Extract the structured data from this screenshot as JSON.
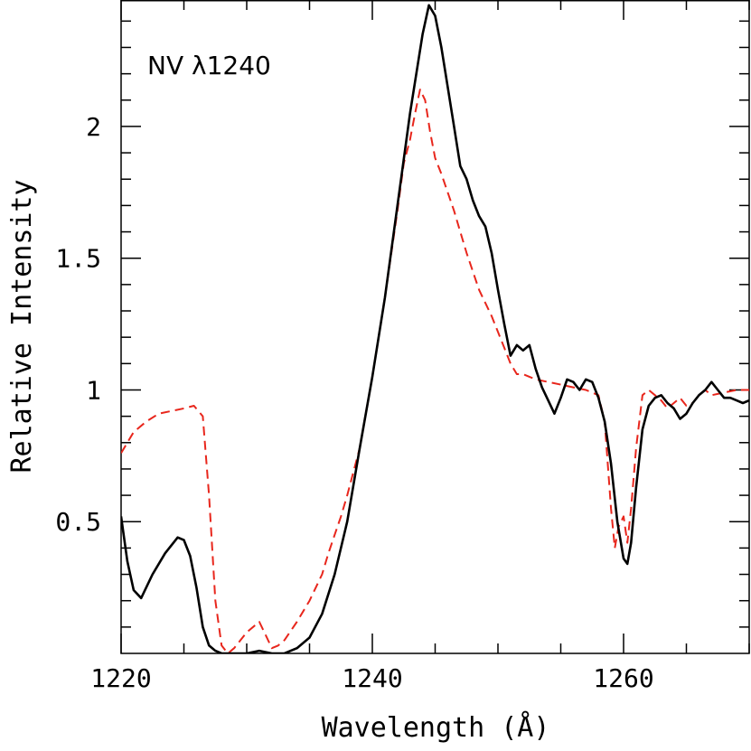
{
  "chart_data": {
    "type": "line",
    "title": "",
    "annotation": "NV λ1240",
    "xlabel": "Wavelength (Å)",
    "ylabel": "Relative Intensity",
    "xlim": [
      1220,
      1270
    ],
    "ylim": [
      0,
      2.48
    ],
    "x_ticks": [
      1220,
      1240,
      1260
    ],
    "y_ticks": [
      0.5,
      1,
      1.5,
      2
    ],
    "x_tick_labels": [
      "1220",
      "1240",
      "1260"
    ],
    "y_tick_labels": [
      "0.5",
      "1",
      "1.5",
      "2"
    ],
    "grid": false,
    "colors": {
      "observed": "#000000",
      "model": "#e8261c"
    },
    "series": [
      {
        "style": "solid",
        "x": [
          1220,
          1220.5,
          1221,
          1221.6,
          1222.5,
          1223.5,
          1224.5,
          1225,
          1225.5,
          1226,
          1226.5,
          1227,
          1227.5,
          1228,
          1229,
          1230,
          1231,
          1232,
          1233,
          1234,
          1235,
          1236,
          1237,
          1238,
          1239,
          1240,
          1241,
          1242,
          1243,
          1244,
          1244.5,
          1245,
          1245.5,
          1246,
          1246.5,
          1247,
          1247.5,
          1248,
          1248.5,
          1249,
          1249.5,
          1250,
          1250.5,
          1251,
          1251.5,
          1252,
          1252.5,
          1253,
          1253.5,
          1254,
          1254.5,
          1255,
          1255.5,
          1256,
          1256.5,
          1257,
          1257.5,
          1258,
          1258.5,
          1259,
          1259.5,
          1260,
          1260.3,
          1260.6,
          1261,
          1261.5,
          1262,
          1262.5,
          1263,
          1263.5,
          1264,
          1264.5,
          1265,
          1265.5,
          1266,
          1266.5,
          1267,
          1267.5,
          1268,
          1268.5,
          1269,
          1269.5,
          1270
        ],
        "y": [
          0.52,
          0.35,
          0.24,
          0.21,
          0.3,
          0.38,
          0.44,
          0.43,
          0.37,
          0.25,
          0.1,
          0.03,
          0.01,
          0.0,
          0.0,
          0.0,
          0.01,
          0.0,
          0.0,
          0.02,
          0.06,
          0.15,
          0.3,
          0.5,
          0.78,
          1.05,
          1.35,
          1.7,
          2.05,
          2.35,
          2.46,
          2.42,
          2.3,
          2.15,
          2.0,
          1.85,
          1.8,
          1.72,
          1.66,
          1.62,
          1.52,
          1.38,
          1.25,
          1.13,
          1.17,
          1.15,
          1.17,
          1.08,
          1.01,
          0.96,
          0.91,
          0.97,
          1.04,
          1.03,
          1.0,
          1.04,
          1.03,
          0.97,
          0.88,
          0.72,
          0.5,
          0.36,
          0.34,
          0.42,
          0.63,
          0.85,
          0.94,
          0.97,
          0.98,
          0.95,
          0.93,
          0.89,
          0.91,
          0.95,
          0.98,
          1.0,
          1.03,
          1.0,
          0.97,
          0.97,
          0.96,
          0.95,
          0.96
        ]
      },
      {
        "style": "dashed",
        "x": [
          1220,
          1220.5,
          1221,
          1222,
          1223,
          1224,
          1225,
          1225.8,
          1226.5,
          1227,
          1227.5,
          1228,
          1228.5,
          1229,
          1230,
          1231,
          1231.5,
          1232,
          1232.5,
          1233,
          1234,
          1235,
          1236,
          1236.5,
          1237,
          1237.5,
          1238,
          1239,
          1240,
          1241,
          1242,
          1242.5,
          1243,
          1243.4,
          1243.8,
          1244.2,
          1244.6,
          1245,
          1245.5,
          1246,
          1246.5,
          1247,
          1247.5,
          1248,
          1248.5,
          1249,
          1249.5,
          1250,
          1250.5,
          1251,
          1251.5,
          1252,
          1252.5,
          1253,
          1254,
          1255,
          1256,
          1257,
          1258,
          1258.5,
          1259,
          1259.3,
          1259.6,
          1260,
          1260.3,
          1260.6,
          1261,
          1261.5,
          1262,
          1262.5,
          1263,
          1263.5,
          1264,
          1264.5,
          1265,
          1265.5,
          1266,
          1266.5,
          1267,
          1268,
          1269,
          1270
        ],
        "y": [
          0.76,
          0.8,
          0.84,
          0.88,
          0.91,
          0.92,
          0.93,
          0.94,
          0.9,
          0.6,
          0.2,
          0.03,
          0.0,
          0.02,
          0.08,
          0.12,
          0.07,
          0.02,
          0.03,
          0.05,
          0.12,
          0.2,
          0.3,
          0.38,
          0.45,
          0.52,
          0.6,
          0.78,
          1.05,
          1.35,
          1.68,
          1.86,
          1.95,
          2.05,
          2.14,
          2.1,
          1.98,
          1.88,
          1.82,
          1.75,
          1.68,
          1.6,
          1.52,
          1.45,
          1.38,
          1.33,
          1.28,
          1.22,
          1.16,
          1.1,
          1.06,
          1.06,
          1.05,
          1.04,
          1.03,
          1.02,
          1.01,
          1.0,
          0.98,
          0.88,
          0.55,
          0.4,
          0.48,
          0.52,
          0.42,
          0.55,
          0.78,
          0.98,
          1.0,
          0.98,
          0.96,
          0.93,
          0.95,
          0.97,
          0.94,
          0.95,
          0.98,
          1.0,
          0.98,
          0.99,
          1.0,
          1.0
        ]
      }
    ]
  }
}
